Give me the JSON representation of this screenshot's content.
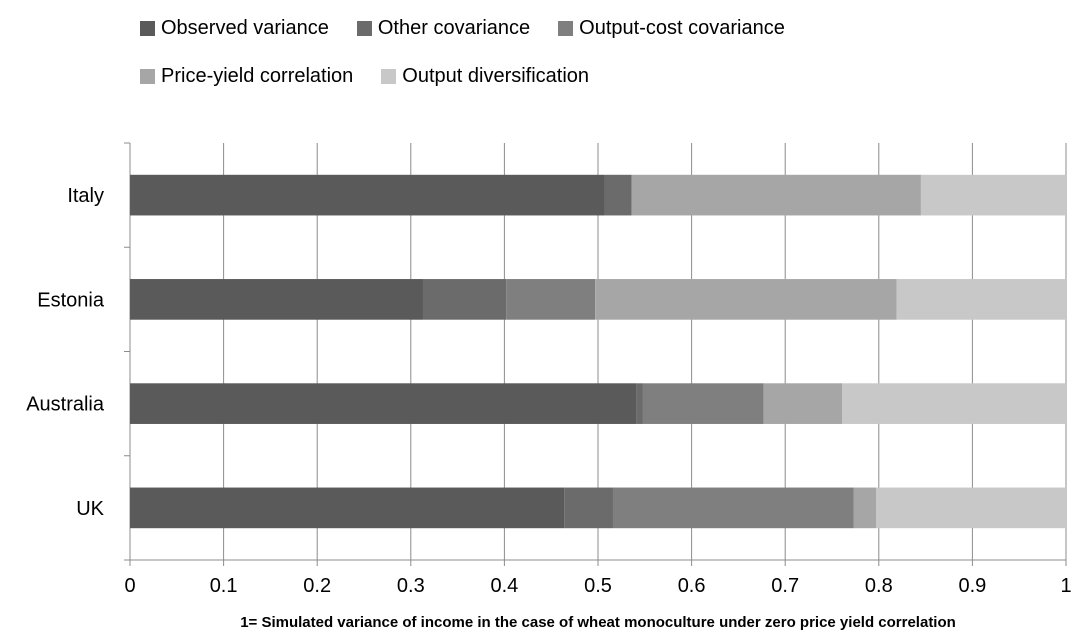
{
  "chart_data": {
    "type": "bar",
    "orientation": "horizontal",
    "stacked": true,
    "categories": [
      "Italy",
      "Estonia",
      "Australia",
      "UK"
    ],
    "series": [
      {
        "name": "Observed variance",
        "color": "#5a5a5a",
        "values": [
          0.507,
          0.313,
          0.541,
          0.464
        ]
      },
      {
        "name": "Other covariance",
        "color": "#6b6b6b",
        "values": [
          0.029,
          0.089,
          0.007,
          0.052
        ]
      },
      {
        "name": "Output-cost covariance",
        "color": "#7f7f7f",
        "values": [
          0.0,
          0.095,
          0.129,
          0.257
        ]
      },
      {
        "name": "Price-yield correlation",
        "color": "#a6a6a6",
        "values": [
          0.309,
          0.322,
          0.084,
          0.024
        ]
      },
      {
        "name": "Output diversification",
        "color": "#c8c8c8",
        "values": [
          0.155,
          0.181,
          0.239,
          0.203
        ]
      }
    ],
    "xlim": [
      0,
      1
    ],
    "xticks": [
      "0",
      "0.1",
      "0.2",
      "0.3",
      "0.4",
      "0.5",
      "0.6",
      "0.7",
      "0.8",
      "0.9",
      "1"
    ],
    "xlabel": "1=  Simulated variance of income in the case of wheat monoculture under zero price yield correlation",
    "ylabel": "",
    "grid": "vertical",
    "legend": "top"
  }
}
